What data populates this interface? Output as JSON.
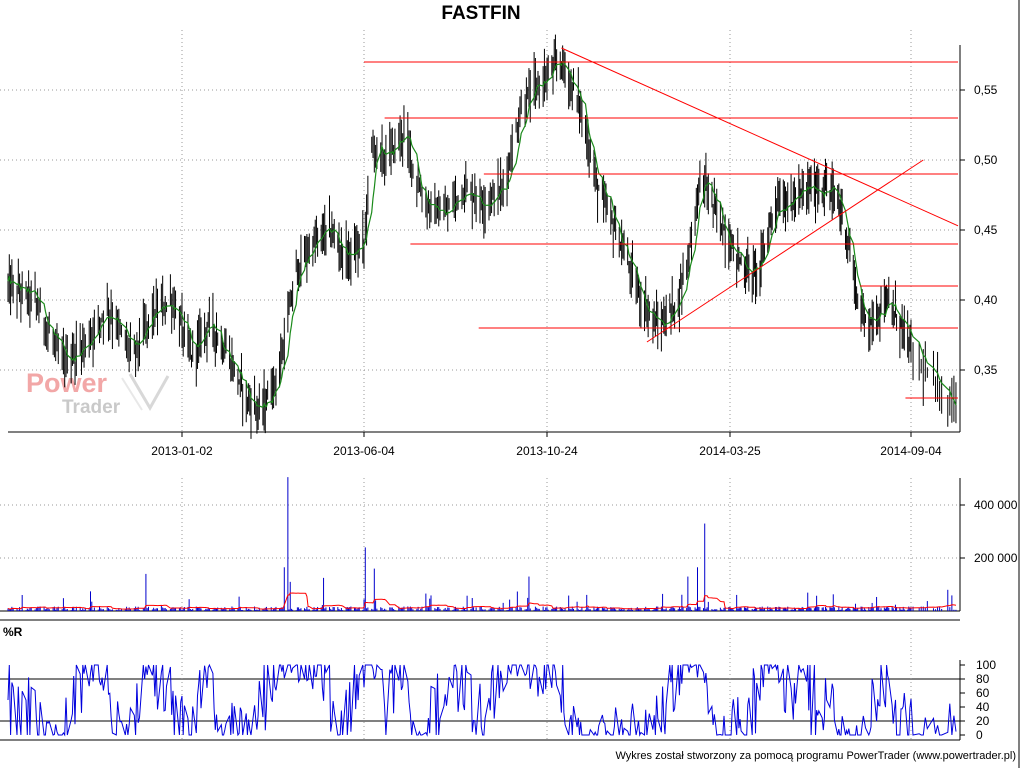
{
  "title": "FASTFIN",
  "footer": "Wykres został stworzony za pomocą programu PowerTrader (www.powertrader.pl)",
  "wr_label": "%R",
  "logo": {
    "word1": "Power",
    "word2": "Trader"
  },
  "colors": {
    "price_bar": "#000000",
    "moving_average": "#1a8a1a",
    "trend_lines": "#ff0000",
    "volume_bar": "#0000cc",
    "volume_average": "#ff0000",
    "williams_r": "#0000dd",
    "grid": "#999999"
  },
  "chart_data": [
    {
      "type": "line",
      "name": "price",
      "title": "FASTFIN",
      "x_tick_labels": [
        "2013-01-02",
        "2013-06-04",
        "2013-10-24",
        "2014-03-25",
        "2014-09-04"
      ],
      "y_tick_labels": [
        "0,35",
        "0,40",
        "0,45",
        "0,50",
        "0,55"
      ],
      "y_ticks": [
        0.35,
        0.4,
        0.45,
        0.5,
        0.55
      ],
      "ylim": [
        0.305,
        0.58
      ],
      "grid": true,
      "series_keypoints": [
        [
          "2012-08-20",
          0.41
        ],
        [
          "2012-09-10",
          0.4
        ],
        [
          "2012-10-01",
          0.355
        ],
        [
          "2012-10-20",
          0.37
        ],
        [
          "2012-11-05",
          0.395
        ],
        [
          "2012-11-25",
          0.36
        ],
        [
          "2012-12-10",
          0.39
        ],
        [
          "2012-12-25",
          0.4
        ],
        [
          "2013-01-10",
          0.36
        ],
        [
          "2013-01-25",
          0.385
        ],
        [
          "2013-02-10",
          0.36
        ],
        [
          "2013-02-25",
          0.33
        ],
        [
          "2013-03-10",
          0.32
        ],
        [
          "2013-03-25",
          0.35
        ],
        [
          "2013-04-08",
          0.42
        ],
        [
          "2013-04-22",
          0.44
        ],
        [
          "2013-05-06",
          0.45
        ],
        [
          "2013-05-20",
          0.43
        ],
        [
          "2013-06-04",
          0.44
        ],
        [
          "2013-06-10",
          0.51
        ],
        [
          "2013-06-20",
          0.5
        ],
        [
          "2013-07-05",
          0.52
        ],
        [
          "2013-07-20",
          0.47
        ],
        [
          "2013-08-05",
          0.46
        ],
        [
          "2013-08-20",
          0.48
        ],
        [
          "2013-09-05",
          0.47
        ],
        [
          "2013-09-20",
          0.48
        ],
        [
          "2013-10-05",
          0.54
        ],
        [
          "2013-10-24",
          0.56
        ],
        [
          "2013-11-05",
          0.57
        ],
        [
          "2013-11-20",
          0.54
        ],
        [
          "2013-12-05",
          0.48
        ],
        [
          "2013-12-20",
          0.45
        ],
        [
          "2014-01-10",
          0.4
        ],
        [
          "2014-01-25",
          0.38
        ],
        [
          "2014-02-10",
          0.4
        ],
        [
          "2014-02-20",
          0.44
        ],
        [
          "2014-03-01",
          0.49
        ],
        [
          "2014-03-10",
          0.47
        ],
        [
          "2014-03-25",
          0.44
        ],
        [
          "2014-04-10",
          0.42
        ],
        [
          "2014-04-20",
          0.42
        ],
        [
          "2014-05-05",
          0.47
        ],
        [
          "2014-05-20",
          0.47
        ],
        [
          "2014-06-05",
          0.48
        ],
        [
          "2014-06-20",
          0.48
        ],
        [
          "2014-07-01",
          0.47
        ],
        [
          "2014-07-10",
          0.44
        ],
        [
          "2014-07-20",
          0.39
        ],
        [
          "2014-08-01",
          0.385
        ],
        [
          "2014-08-10",
          0.4
        ],
        [
          "2014-08-20",
          0.39
        ],
        [
          "2014-08-28",
          0.38
        ],
        [
          "2014-09-10",
          0.35
        ],
        [
          "2014-09-20",
          0.33
        ],
        [
          "2014-09-27",
          0.328
        ]
      ],
      "horizontal_levels": [
        {
          "y": 0.57,
          "from": "2013-06-04",
          "to": "2014-09-27"
        },
        {
          "y": 0.53,
          "from": "2013-06-20",
          "to": "2014-09-27"
        },
        {
          "y": 0.49,
          "from": "2013-09-05",
          "to": "2014-09-27"
        },
        {
          "y": 0.44,
          "from": "2013-07-10",
          "to": "2014-09-27"
        },
        {
          "y": 0.41,
          "from": "2014-07-20",
          "to": "2014-09-27"
        },
        {
          "y": 0.38,
          "from": "2013-09-01",
          "to": "2014-09-27"
        },
        {
          "y": 0.33,
          "from": "2014-08-30",
          "to": "2014-09-27"
        }
      ],
      "trend_lines": [
        {
          "from": [
            "2013-11-05",
            0.58
          ],
          "to": [
            "2014-09-27",
            0.453
          ]
        },
        {
          "from": [
            "2014-01-15",
            0.37
          ],
          "to": [
            "2014-09-10",
            0.5
          ]
        }
      ]
    },
    {
      "type": "bar",
      "name": "volume",
      "y_tick_labels": [
        "200 000",
        "400 000"
      ],
      "y_ticks": [
        200000,
        400000
      ],
      "ylim": [
        0,
        500000
      ],
      "spikes": [
        [
          "2013-04-01",
          505000
        ],
        [
          "2013-03-29",
          165000
        ],
        [
          "2013-04-03",
          110000
        ],
        [
          "2013-06-08",
          330000
        ],
        [
          "2013-06-05",
          240000
        ],
        [
          "2013-06-12",
          160000
        ],
        [
          "2014-03-04",
          330000
        ],
        [
          "2014-02-26",
          165000
        ],
        [
          "2014-03-01",
          210000
        ],
        [
          "2014-02-18",
          130000
        ],
        [
          "2014-09-22",
          80000
        ],
        [
          "2012-12-05",
          140000
        ],
        [
          "2013-05-01",
          125000
        ],
        [
          "2013-10-10",
          130000
        ]
      ]
    },
    {
      "type": "line",
      "name": "%R",
      "title": "%R",
      "y_tick_labels": [
        "0",
        "20",
        "40",
        "60",
        "80",
        "100"
      ],
      "y_ticks": [
        0,
        20,
        40,
        60,
        80,
        100
      ],
      "ylim": [
        0,
        100
      ],
      "reference_lines": [
        20,
        80
      ]
    }
  ]
}
